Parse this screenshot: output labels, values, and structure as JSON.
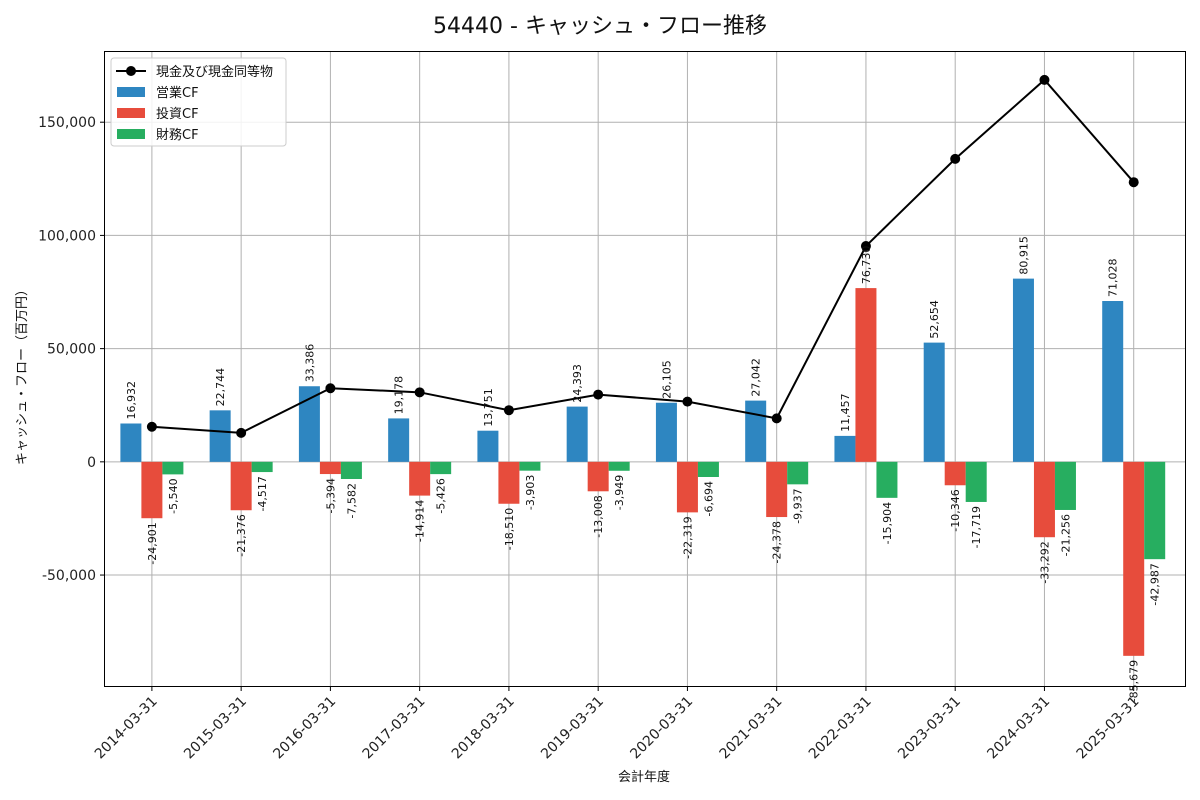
{
  "chart_data": {
    "type": "bar",
    "title": "54440 - キャッシュ・フロー推移",
    "xlabel": "会計年度",
    "ylabel": "キャッシュ・フロー（百万円）",
    "ylim": [
      -99000,
      181000
    ],
    "yticks": [
      -50000,
      0,
      50000,
      100000,
      150000
    ],
    "ytick_labels": [
      "-50,000",
      "0",
      "50,000",
      "100,000",
      "150,000"
    ],
    "grid": true,
    "legend_position": "top-left",
    "categories": [
      "2014-03-31",
      "2015-03-31",
      "2016-03-31",
      "2017-03-31",
      "2018-03-31",
      "2019-03-31",
      "2020-03-31",
      "2021-03-31",
      "2022-03-31",
      "2023-03-31",
      "2024-03-31",
      "2025-03-31"
    ],
    "series": [
      {
        "name": "営業CF",
        "kind": "bar",
        "color": "#2e86c1",
        "values": [
          16932,
          22744,
          33386,
          19178,
          13751,
          24393,
          26105,
          27042,
          11457,
          52654,
          80915,
          71028
        ],
        "labels": [
          "16,932",
          "22,744",
          "33,386",
          "19,178",
          "13,751",
          "24,393",
          "26,105",
          "27,042",
          "11,457",
          "52,654",
          "80,915",
          "71,028"
        ]
      },
      {
        "name": "投資CF",
        "kind": "bar",
        "color": "#e74c3c",
        "values": [
          -24901,
          -21376,
          -5394,
          -14914,
          -18510,
          -13008,
          -22319,
          -24378,
          76730,
          -10346,
          -33292,
          -85679
        ],
        "labels": [
          "-24,901",
          "-21,376",
          "-5,394",
          "-14,914",
          "-18,510",
          "-13,008",
          "-22,319",
          "-24,378",
          "76,730",
          "-10,346",
          "-33,292",
          "-85,679"
        ]
      },
      {
        "name": "財務CF",
        "kind": "bar",
        "color": "#27ae60",
        "values": [
          -5540,
          -4517,
          -7582,
          -5426,
          -3903,
          -3949,
          -6694,
          -9937,
          -15904,
          -17719,
          -21256,
          -42987
        ],
        "labels": [
          "-5,540",
          "-4,517",
          "-7,582",
          "-5,426",
          "-3,903",
          "-3,949",
          "-6,694",
          "-9,937",
          "-15,904",
          "-17,719",
          "-21,256",
          "-42,987"
        ]
      },
      {
        "name": "現金及び現金同等物",
        "kind": "line",
        "color": "#000000",
        "values": [
          15500,
          12800,
          32500,
          30700,
          22800,
          29700,
          26600,
          19200,
          95300,
          133800,
          168700,
          123500
        ]
      }
    ]
  }
}
